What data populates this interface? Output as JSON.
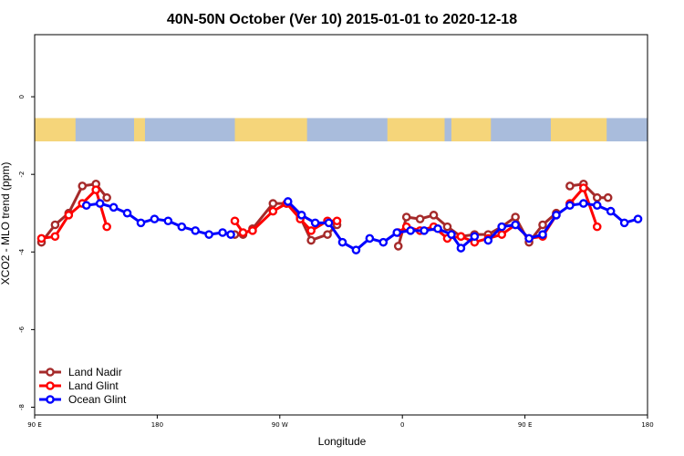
{
  "chart_data": {
    "type": "line",
    "title": "40N-50N October (Ver 10)   2015-01-01 to 2020-12-18",
    "xlabel": "Longitude",
    "ylabel": "XCO2 - MLO trend (ppm)",
    "xlim": [
      90,
      540
    ],
    "ylim": [
      -8.2,
      1.6
    ],
    "x_ticks": [
      {
        "value": 90,
        "label": "90 E"
      },
      {
        "value": 180,
        "label": "180"
      },
      {
        "value": 270,
        "label": "90 W"
      },
      {
        "value": 360,
        "label": "0"
      },
      {
        "value": 450,
        "label": "90 E"
      },
      {
        "value": 540,
        "label": "180"
      }
    ],
    "y_ticks": [
      {
        "value": 0,
        "label": "0"
      },
      {
        "value": -2,
        "label": "-2"
      },
      {
        "value": -4,
        "label": "-4"
      },
      {
        "value": -6,
        "label": "-6"
      },
      {
        "value": -8,
        "label": "-8"
      }
    ],
    "grid": false,
    "legend_position": "bottom-left",
    "map_strip": {
      "y_range": [
        -1.15,
        -0.55
      ],
      "land_color": "#f5d57a",
      "ocean_color": "#a9bcdc",
      "land_segments": [
        [
          90,
          120
        ],
        [
          163,
          171
        ],
        [
          237,
          290
        ],
        [
          349,
          391
        ],
        [
          396,
          425
        ],
        [
          469,
          510
        ]
      ]
    },
    "series": [
      {
        "name": "Land Nadir",
        "color": "#a52a2a",
        "segments": [
          {
            "x": [
              95,
              105,
              115,
              125,
              135,
              143
            ],
            "y": [
              -3.75,
              -3.3,
              -3.0,
              -2.3,
              -2.25,
              -2.6
            ]
          },
          {
            "x": [
              237,
              243,
              250,
              265,
              275,
              285,
              293,
              305,
              312
            ],
            "y": [
              -3.55,
              -3.55,
              -3.4,
              -2.75,
              -2.75,
              -3.1,
              -3.7,
              -3.55,
              -3.3
            ]
          },
          {
            "x": [
              357,
              363,
              373,
              383,
              393,
              403,
              413,
              423,
              433,
              443,
              453,
              463,
              473
            ],
            "y": [
              -3.85,
              -3.1,
              -3.15,
              -3.05,
              -3.35,
              -3.6,
              -3.55,
              -3.55,
              -3.35,
              -3.1,
              -3.75,
              -3.3,
              -3.0
            ]
          },
          {
            "x": [
              483,
              493,
              503,
              511
            ],
            "y": [
              -2.3,
              -2.25,
              -2.6,
              -2.6
            ]
          }
        ]
      },
      {
        "name": "Land Glint",
        "color": "#ff0000",
        "segments": [
          {
            "x": [
              95,
              105,
              115,
              125,
              135,
              143
            ],
            "y": [
              -3.65,
              -3.6,
              -3.05,
              -2.75,
              -2.4,
              -3.35
            ]
          },
          {
            "x": [
              237,
              243,
              250,
              265,
              275,
              285,
              293,
              305,
              312
            ],
            "y": [
              -3.2,
              -3.5,
              -3.45,
              -2.95,
              -2.75,
              -3.15,
              -3.45,
              -3.2,
              -3.2
            ]
          },
          {
            "x": [
              357,
              363,
              373,
              383,
              393,
              403,
              413,
              423,
              433,
              443,
              453,
              463,
              473
            ],
            "y": [
              -3.5,
              -3.35,
              -3.45,
              -3.35,
              -3.65,
              -3.6,
              -3.75,
              -3.65,
              -3.55,
              -3.3,
              -3.65,
              -3.6,
              -3.05
            ]
          },
          {
            "x": [
              483,
              493,
              503
            ],
            "y": [
              -2.75,
              -2.35,
              -3.35
            ]
          }
        ]
      },
      {
        "name": "Ocean Glint",
        "color": "#0000ff",
        "segments": [
          {
            "x": [
              128,
              138,
              148,
              158,
              168,
              178,
              188,
              198,
              208,
              218,
              228,
              234
            ],
            "y": [
              -2.8,
              -2.75,
              -2.85,
              -3.0,
              -3.25,
              -3.15,
              -3.2,
              -3.35,
              -3.45,
              -3.55,
              -3.5,
              -3.55
            ]
          },
          {
            "x": [
              276,
              286,
              296,
              306,
              316,
              326,
              336,
              346,
              356,
              366,
              376,
              386,
              396,
              403,
              413
            ],
            "y": [
              -2.7,
              -3.05,
              -3.25,
              -3.25,
              -3.75,
              -3.95,
              -3.65,
              -3.75,
              -3.5,
              -3.45,
              -3.45,
              -3.4,
              -3.55,
              -3.9,
              -3.6
            ]
          },
          {
            "x": [
              423,
              433,
              443,
              453,
              463,
              473,
              483,
              493,
              503,
              513,
              523,
              533
            ],
            "y": [
              -3.7,
              -3.35,
              -3.3,
              -3.65,
              -3.55,
              -3.05,
              -2.8,
              -2.75,
              -2.8,
              -2.95,
              -3.25,
              -3.15
            ]
          }
        ]
      }
    ]
  }
}
